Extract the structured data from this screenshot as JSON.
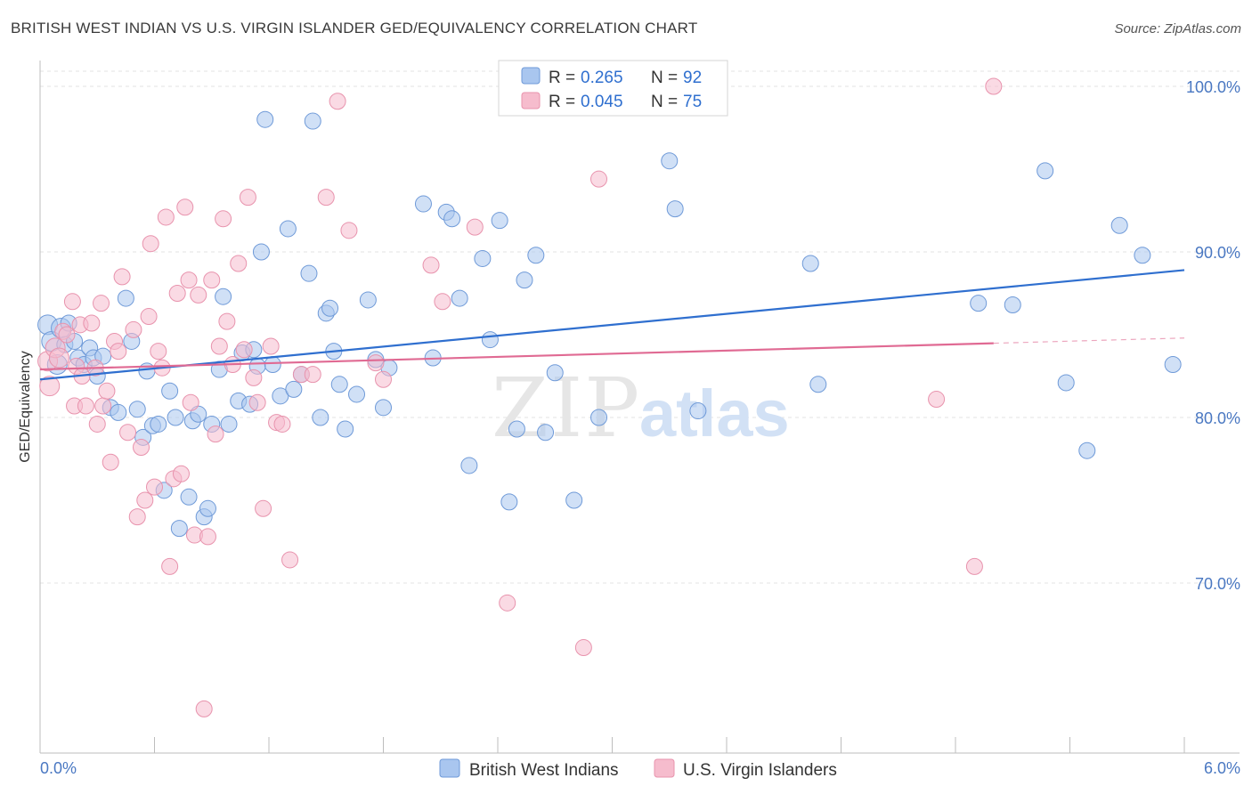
{
  "title": "BRITISH WEST INDIAN VS U.S. VIRGIN ISLANDER GED/EQUIVALENCY CORRELATION CHART",
  "source": "Source: ZipAtlas.com",
  "watermark": {
    "zip": "ZIP",
    "atlas": "atlas"
  },
  "colors": {
    "blue_fill": "#a9c6ef",
    "blue_stroke": "#6f9ad8",
    "blue_line": "#2f6fcf",
    "pink_fill": "#f6bccd",
    "pink_stroke": "#e893ad",
    "pink_line": "#e06a93",
    "tick_text": "#4a78c2",
    "grid": "#e3e3e3"
  },
  "legend": {
    "rows": [
      {
        "r_label": "R =",
        "r_value": "0.265",
        "n_label": "N =",
        "n_value": "92"
      },
      {
        "r_label": "R =",
        "r_value": "0.045",
        "n_label": "N =",
        "n_value": "75"
      }
    ]
  },
  "bottom_legend": [
    "British West Indians",
    "U.S. Virgin Islanders"
  ],
  "chart_data": {
    "type": "scatter",
    "title": "BRITISH WEST INDIAN VS U.S. VIRGIN ISLANDER GED/EQUIVALENCY CORRELATION CHART",
    "xlabel": "",
    "ylabel": "GED/Equivalency",
    "xlim": [
      0,
      6
    ],
    "ylim": [
      61,
      101
    ],
    "x_tick_labels": [
      "0.0%",
      "6.0%"
    ],
    "y_ticks": [
      70,
      80,
      90,
      100
    ],
    "y_tick_labels": [
      "70.0%",
      "80.0%",
      "90.0%",
      "100.0%"
    ],
    "grid": true,
    "legend_position": "top-center",
    "series": [
      {
        "name": "British West Indians",
        "color": "#a9c6ef",
        "R": 0.265,
        "N": 92,
        "trend": {
          "x": [
            0,
            6
          ],
          "y": [
            82.3,
            88.9
          ]
        },
        "points": [
          [
            0.04,
            85.6
          ],
          [
            0.06,
            84.6
          ],
          [
            0.09,
            83.2
          ],
          [
            0.11,
            85.4
          ],
          [
            0.13,
            84.4
          ],
          [
            0.15,
            85.7
          ],
          [
            0.18,
            84.6
          ],
          [
            0.2,
            83.6
          ],
          [
            0.23,
            83.2
          ],
          [
            0.26,
            84.2
          ],
          [
            0.28,
            83.6
          ],
          [
            0.3,
            82.5
          ],
          [
            0.33,
            83.7
          ],
          [
            0.37,
            80.6
          ],
          [
            0.41,
            80.3
          ],
          [
            0.45,
            87.2
          ],
          [
            0.48,
            84.6
          ],
          [
            0.51,
            80.5
          ],
          [
            0.54,
            78.8
          ],
          [
            0.56,
            82.8
          ],
          [
            0.59,
            79.5
          ],
          [
            0.62,
            79.6
          ],
          [
            0.65,
            75.6
          ],
          [
            0.68,
            81.6
          ],
          [
            0.71,
            80.0
          ],
          [
            0.73,
            73.3
          ],
          [
            0.78,
            75.2
          ],
          [
            0.8,
            79.8
          ],
          [
            0.83,
            80.2
          ],
          [
            0.86,
            74.0
          ],
          [
            0.88,
            74.5
          ],
          [
            0.9,
            79.6
          ],
          [
            0.94,
            82.9
          ],
          [
            0.96,
            87.3
          ],
          [
            0.99,
            79.6
          ],
          [
            1.04,
            81.0
          ],
          [
            1.06,
            83.9
          ],
          [
            1.1,
            80.8
          ],
          [
            1.12,
            84.1
          ],
          [
            1.14,
            83.1
          ],
          [
            1.16,
            90.0
          ],
          [
            1.18,
            98.0
          ],
          [
            1.22,
            83.2
          ],
          [
            1.26,
            81.3
          ],
          [
            1.3,
            91.4
          ],
          [
            1.33,
            81.7
          ],
          [
            1.37,
            82.6
          ],
          [
            1.41,
            88.7
          ],
          [
            1.43,
            97.9
          ],
          [
            1.47,
            80.0
          ],
          [
            1.5,
            86.3
          ],
          [
            1.52,
            86.6
          ],
          [
            1.54,
            84.0
          ],
          [
            1.57,
            82.0
          ],
          [
            1.6,
            79.3
          ],
          [
            1.66,
            81.4
          ],
          [
            1.72,
            87.1
          ],
          [
            1.76,
            83.5
          ],
          [
            1.8,
            80.6
          ],
          [
            1.83,
            83.0
          ],
          [
            2.01,
            92.9
          ],
          [
            2.06,
            83.6
          ],
          [
            2.13,
            92.4
          ],
          [
            2.16,
            92.0
          ],
          [
            2.2,
            87.2
          ],
          [
            2.25,
            77.1
          ],
          [
            2.32,
            89.6
          ],
          [
            2.36,
            84.7
          ],
          [
            2.41,
            91.9
          ],
          [
            2.46,
            74.9
          ],
          [
            2.5,
            79.3
          ],
          [
            2.54,
            88.3
          ],
          [
            2.6,
            89.8
          ],
          [
            2.65,
            79.1
          ],
          [
            2.7,
            82.7
          ],
          [
            2.8,
            75.0
          ],
          [
            2.93,
            80.0
          ],
          [
            3.0,
            98.9
          ],
          [
            3.3,
            95.5
          ],
          [
            3.33,
            92.6
          ],
          [
            3.45,
            80.4
          ],
          [
            4.04,
            89.3
          ],
          [
            4.08,
            82.0
          ],
          [
            4.92,
            86.9
          ],
          [
            5.1,
            86.8
          ],
          [
            5.27,
            94.9
          ],
          [
            5.38,
            82.1
          ],
          [
            5.49,
            78.0
          ],
          [
            5.66,
            91.6
          ],
          [
            5.78,
            89.8
          ],
          [
            5.94,
            83.2
          ]
        ]
      },
      {
        "name": "U.S. Virgin Islanders",
        "color": "#f6bccd",
        "R": 0.045,
        "N": 75,
        "trend": {
          "x": [
            0,
            6
          ],
          "y": [
            82.9,
            84.8
          ]
        },
        "points": [
          [
            0.04,
            83.4
          ],
          [
            0.05,
            81.9
          ],
          [
            0.08,
            84.2
          ],
          [
            0.1,
            83.6
          ],
          [
            0.12,
            85.2
          ],
          [
            0.14,
            85.0
          ],
          [
            0.17,
            87.0
          ],
          [
            0.18,
            80.7
          ],
          [
            0.19,
            83.1
          ],
          [
            0.21,
            85.6
          ],
          [
            0.22,
            82.5
          ],
          [
            0.24,
            80.7
          ],
          [
            0.27,
            85.7
          ],
          [
            0.29,
            83.0
          ],
          [
            0.3,
            79.6
          ],
          [
            0.32,
            86.9
          ],
          [
            0.33,
            80.7
          ],
          [
            0.35,
            81.6
          ],
          [
            0.37,
            77.3
          ],
          [
            0.39,
            84.6
          ],
          [
            0.41,
            84.0
          ],
          [
            0.43,
            88.5
          ],
          [
            0.46,
            79.1
          ],
          [
            0.49,
            85.3
          ],
          [
            0.51,
            74.0
          ],
          [
            0.53,
            78.2
          ],
          [
            0.55,
            75.0
          ],
          [
            0.57,
            86.1
          ],
          [
            0.58,
            90.5
          ],
          [
            0.6,
            75.8
          ],
          [
            0.62,
            84.0
          ],
          [
            0.64,
            83.0
          ],
          [
            0.66,
            92.1
          ],
          [
            0.68,
            71.0
          ],
          [
            0.7,
            76.3
          ],
          [
            0.72,
            87.5
          ],
          [
            0.74,
            76.6
          ],
          [
            0.76,
            92.7
          ],
          [
            0.78,
            88.3
          ],
          [
            0.79,
            80.9
          ],
          [
            0.81,
            72.9
          ],
          [
            0.83,
            87.4
          ],
          [
            0.86,
            62.4
          ],
          [
            0.88,
            72.8
          ],
          [
            0.9,
            88.3
          ],
          [
            0.92,
            79.0
          ],
          [
            0.94,
            84.3
          ],
          [
            0.96,
            92.0
          ],
          [
            0.98,
            85.8
          ],
          [
            1.01,
            83.2
          ],
          [
            1.04,
            89.3
          ],
          [
            1.07,
            84.1
          ],
          [
            1.09,
            93.3
          ],
          [
            1.12,
            82.4
          ],
          [
            1.14,
            80.9
          ],
          [
            1.17,
            74.5
          ],
          [
            1.21,
            84.3
          ],
          [
            1.24,
            79.7
          ],
          [
            1.27,
            79.6
          ],
          [
            1.31,
            71.4
          ],
          [
            1.37,
            82.6
          ],
          [
            1.43,
            82.6
          ],
          [
            1.5,
            93.3
          ],
          [
            1.56,
            99.1
          ],
          [
            1.62,
            91.3
          ],
          [
            1.76,
            83.3
          ],
          [
            1.8,
            82.3
          ],
          [
            2.05,
            89.2
          ],
          [
            2.11,
            87.0
          ],
          [
            2.28,
            91.5
          ],
          [
            2.45,
            68.8
          ],
          [
            2.85,
            66.1
          ],
          [
            2.93,
            94.4
          ],
          [
            4.7,
            81.1
          ],
          [
            4.9,
            71.0
          ],
          [
            5.0,
            100.0
          ]
        ]
      }
    ]
  }
}
